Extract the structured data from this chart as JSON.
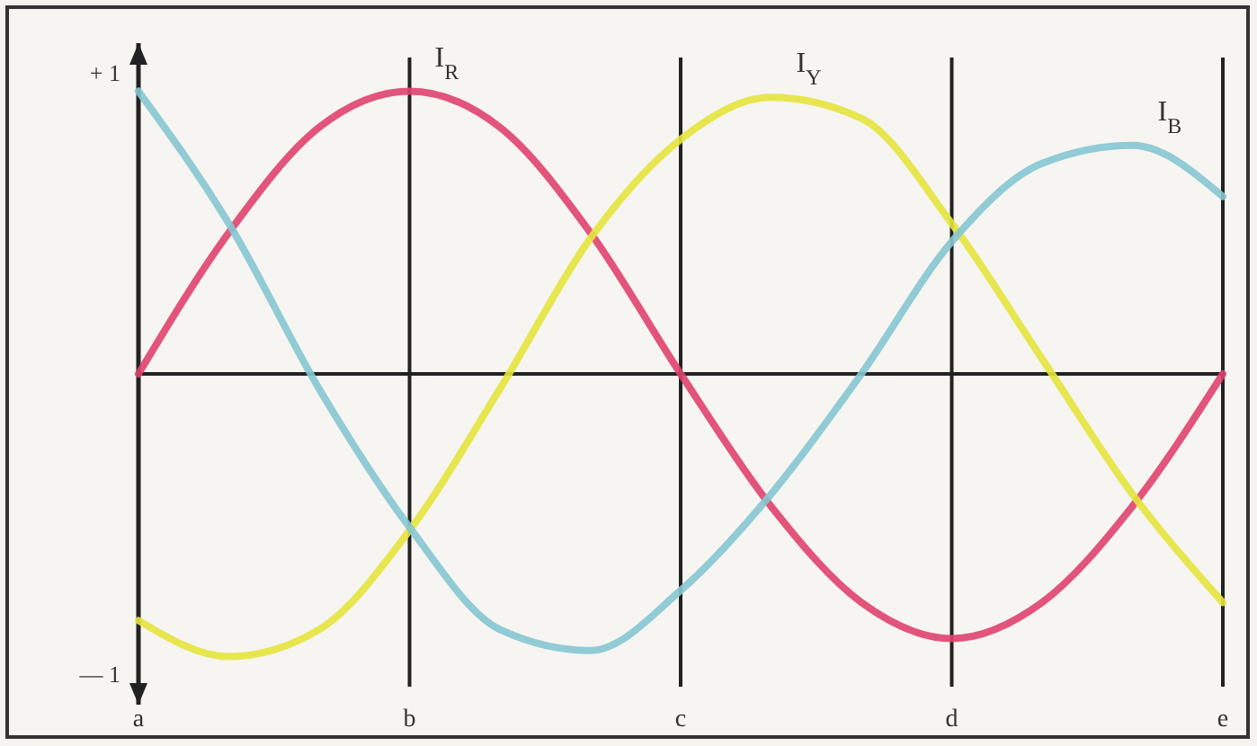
{
  "chart_data": {
    "type": "line",
    "categories": [
      "a",
      null,
      null,
      "b",
      null,
      null,
      "c",
      null,
      null,
      "d",
      null,
      null,
      "e"
    ],
    "series": [
      {
        "name": "I$_{R}$",
        "color": "#e0426e",
        "values": [
          0,
          0.47,
          0.82,
          0.94,
          0.82,
          0.47,
          0,
          -0.44,
          -0.76,
          -0.88,
          -0.76,
          -0.44,
          0
        ]
      },
      {
        "name": "I$_{Y}$",
        "color": "#e6e43c",
        "values": [
          -0.82,
          -0.94,
          -0.85,
          -0.52,
          -0.05,
          0.45,
          0.78,
          0.92,
          0.85,
          0.5,
          0.05,
          -0.4,
          -0.76
        ]
      },
      {
        "name": "I$_{B}$",
        "color": "#86c6d2",
        "values": [
          0.94,
          0.5,
          -0.05,
          -0.51,
          -0.85,
          -0.92,
          -0.72,
          -0.4,
          0,
          0.44,
          0.7,
          0.76,
          0.59
        ]
      }
    ],
    "ylim": [
      -1.1,
      1.1
    ],
    "yticks": [
      {
        "value": 1,
        "label": "+ 1"
      },
      {
        "value": -1,
        "label": "— 1"
      }
    ],
    "grid": "x",
    "legend": false,
    "marker": "none",
    "line_style": "solid"
  }
}
